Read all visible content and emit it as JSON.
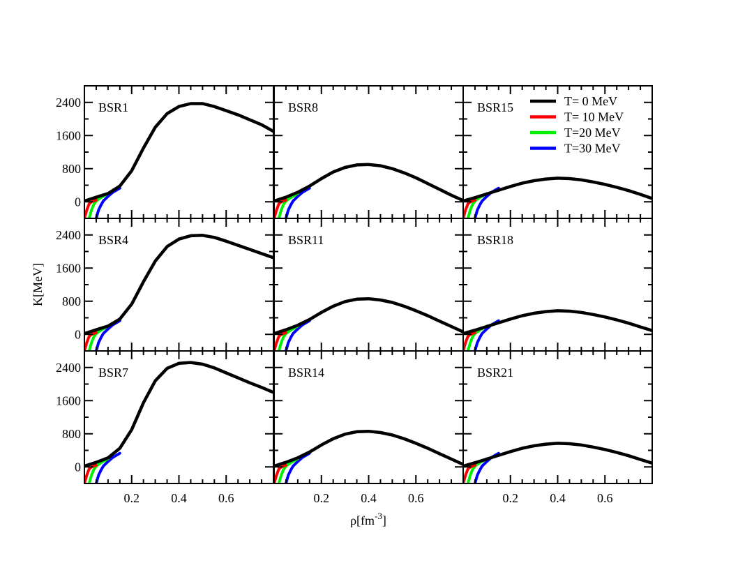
{
  "chart_data": {
    "type": "line",
    "xlabel_base": "ρ[fm",
    "xlabel_exp": "-3",
    "xlabel_close": "]",
    "ylabel": "K[MeV]",
    "xlim": [
      0.0,
      0.8
    ],
    "ylim": [
      -400,
      2800
    ],
    "xticks": [
      0.2,
      0.4,
      0.6
    ],
    "xtick_labels": [
      "0.2",
      "0.4",
      "0.6"
    ],
    "yticks": [
      0,
      800,
      1600,
      2400
    ],
    "ytick_labels": [
      "0",
      "800",
      "1600",
      "2400"
    ],
    "legend": {
      "location": "top-right panel",
      "entries": [
        {
          "label": "T= 0  MeV",
          "color": "#000000"
        },
        {
          "label": "T= 10 MeV",
          "color": "#ff0000"
        },
        {
          "label": "T=20 MeV",
          "color": "#00ee00"
        },
        {
          "label": "T=30 MeV",
          "color": "#0000ff"
        }
      ]
    },
    "colors": {
      "T0": "#000000",
      "T10": "#ff0000",
      "T20": "#00ee00",
      "T30": "#0000ff"
    },
    "low_density_curves": {
      "T10": {
        "x": [
          0.0,
          0.005,
          0.01,
          0.02,
          0.03,
          0.05
        ],
        "y": [
          -400,
          -300,
          -200,
          -50,
          0,
          40
        ]
      },
      "T20": {
        "x": [
          0.02,
          0.025,
          0.03,
          0.04,
          0.05,
          0.07,
          0.1
        ],
        "y": [
          -400,
          -300,
          -200,
          -60,
          20,
          100,
          200
        ]
      },
      "T30": {
        "x": [
          0.05,
          0.055,
          0.06,
          0.07,
          0.08,
          0.1,
          0.12,
          0.15
        ],
        "y": [
          -400,
          -300,
          -200,
          -80,
          20,
          130,
          230,
          330
        ]
      }
    },
    "panels": [
      {
        "label": "BSR1",
        "x": [
          0.0,
          0.05,
          0.1,
          0.15,
          0.2,
          0.25,
          0.3,
          0.35,
          0.4,
          0.45,
          0.5,
          0.55,
          0.6,
          0.65,
          0.7,
          0.75,
          0.8
        ],
        "y": [
          20,
          110,
          200,
          380,
          750,
          1300,
          1800,
          2130,
          2300,
          2370,
          2370,
          2300,
          2200,
          2100,
          1980,
          1860,
          1700
        ]
      },
      {
        "label": "BSR8",
        "x": [
          0.0,
          0.05,
          0.1,
          0.15,
          0.2,
          0.25,
          0.3,
          0.35,
          0.4,
          0.45,
          0.5,
          0.55,
          0.6,
          0.65,
          0.7,
          0.75,
          0.8
        ],
        "y": [
          20,
          110,
          230,
          380,
          560,
          720,
          830,
          890,
          900,
          870,
          800,
          700,
          580,
          440,
          300,
          160,
          30
        ]
      },
      {
        "label": "BSR15",
        "x": [
          0.0,
          0.05,
          0.1,
          0.15,
          0.2,
          0.25,
          0.3,
          0.35,
          0.4,
          0.45,
          0.5,
          0.55,
          0.6,
          0.65,
          0.7,
          0.75,
          0.8
        ],
        "y": [
          20,
          100,
          190,
          280,
          370,
          450,
          510,
          550,
          570,
          560,
          530,
          480,
          420,
          350,
          270,
          180,
          80
        ]
      },
      {
        "label": "BSR4",
        "x": [
          0.0,
          0.05,
          0.1,
          0.15,
          0.2,
          0.25,
          0.3,
          0.35,
          0.4,
          0.45,
          0.5,
          0.55,
          0.6,
          0.65,
          0.7,
          0.75,
          0.8
        ],
        "y": [
          20,
          110,
          200,
          370,
          730,
          1270,
          1770,
          2120,
          2300,
          2380,
          2390,
          2340,
          2250,
          2150,
          2050,
          1950,
          1850
        ]
      },
      {
        "label": "BSR11",
        "x": [
          0.0,
          0.05,
          0.1,
          0.15,
          0.2,
          0.25,
          0.3,
          0.35,
          0.4,
          0.45,
          0.5,
          0.55,
          0.6,
          0.65,
          0.7,
          0.75,
          0.8
        ],
        "y": [
          20,
          110,
          220,
          360,
          530,
          680,
          790,
          850,
          860,
          830,
          770,
          680,
          570,
          450,
          320,
          190,
          60
        ]
      },
      {
        "label": "BSR18",
        "x": [
          0.0,
          0.05,
          0.1,
          0.15,
          0.2,
          0.25,
          0.3,
          0.35,
          0.4,
          0.45,
          0.5,
          0.55,
          0.6,
          0.65,
          0.7,
          0.75,
          0.8
        ],
        "y": [
          20,
          100,
          190,
          280,
          370,
          450,
          510,
          550,
          570,
          560,
          530,
          480,
          420,
          350,
          270,
          180,
          90
        ]
      },
      {
        "label": "BSR7",
        "x": [
          0.0,
          0.05,
          0.1,
          0.15,
          0.2,
          0.25,
          0.3,
          0.35,
          0.4,
          0.45,
          0.5,
          0.55,
          0.6,
          0.65,
          0.7,
          0.75,
          0.8
        ],
        "y": [
          20,
          110,
          220,
          450,
          900,
          1550,
          2080,
          2380,
          2500,
          2520,
          2480,
          2390,
          2270,
          2150,
          2030,
          1920,
          1800
        ]
      },
      {
        "label": "BSR14",
        "x": [
          0.0,
          0.05,
          0.1,
          0.15,
          0.2,
          0.25,
          0.3,
          0.35,
          0.4,
          0.45,
          0.5,
          0.55,
          0.6,
          0.65,
          0.7,
          0.75,
          0.8
        ],
        "y": [
          20,
          110,
          220,
          360,
          530,
          680,
          790,
          850,
          860,
          830,
          770,
          680,
          570,
          450,
          320,
          190,
          60
        ]
      },
      {
        "label": "BSR21",
        "x": [
          0.0,
          0.05,
          0.1,
          0.15,
          0.2,
          0.25,
          0.3,
          0.35,
          0.4,
          0.45,
          0.5,
          0.55,
          0.6,
          0.65,
          0.7,
          0.75,
          0.8
        ],
        "y": [
          20,
          100,
          190,
          280,
          370,
          450,
          510,
          550,
          570,
          560,
          530,
          480,
          420,
          350,
          270,
          180,
          90
        ]
      }
    ]
  }
}
